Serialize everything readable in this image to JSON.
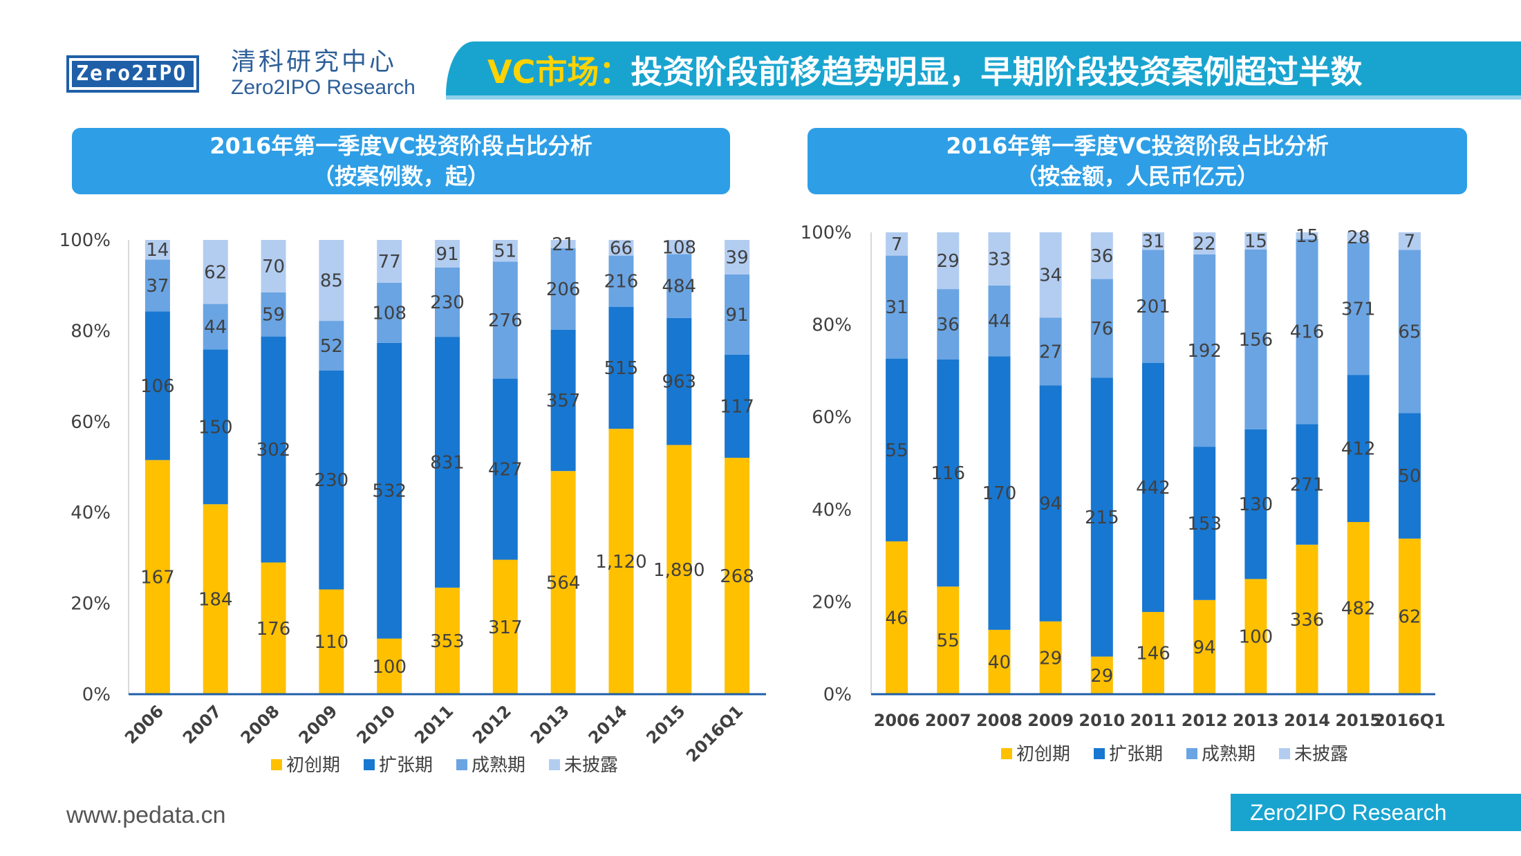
{
  "header": {
    "logo_text": "Zero2IPO",
    "org_name_cn": "清科研究中心",
    "org_name_en": "Zero2IPO Research",
    "title_highlight": "VC市场：",
    "title_rest": "投资阶段前移趋势明显，早期阶段投资案例超过半数"
  },
  "footer": {
    "url": "www.pedata.cn",
    "brand": "Zero2IPO Research"
  },
  "colors": {
    "seed": "#ffc000",
    "expansion": "#1877d0",
    "mature": "#6aa4e3",
    "undisclosed": "#b3cdf1",
    "title_bar": "#19a4d0",
    "panel_title": "#2e9fe6"
  },
  "chart_data": [
    {
      "type": "bar",
      "stacked": "percent",
      "title_line1": "2016年第一季度VC投资阶段占比分析",
      "title_line2": "（按案例数，起）",
      "categories": [
        "2006",
        "2007",
        "2008",
        "2009",
        "2010",
        "2011",
        "2012",
        "2013",
        "2014",
        "2015",
        "2016Q1"
      ],
      "yticks": [
        "0%",
        "20%",
        "40%",
        "60%",
        "80%",
        "100%"
      ],
      "ylim": [
        0,
        100
      ],
      "legend_position": "bottom",
      "series": [
        {
          "name": "初创期",
          "color_key": "seed",
          "values": [
            167,
            184,
            176,
            110,
            100,
            353,
            317,
            564,
            1120,
            1890,
            268
          ],
          "labels": [
            "167",
            "184",
            "176",
            "110",
            "100",
            "353",
            "317",
            "564",
            "1,120",
            "1,890",
            "268"
          ]
        },
        {
          "name": "扩张期",
          "color_key": "expansion",
          "values": [
            106,
            150,
            302,
            230,
            532,
            831,
            427,
            357,
            515,
            963,
            117
          ],
          "labels": [
            "106",
            "150",
            "302",
            "230",
            "532",
            "831",
            "427",
            "357",
            "515",
            "963",
            "117"
          ]
        },
        {
          "name": "成熟期",
          "color_key": "mature",
          "values": [
            37,
            44,
            59,
            52,
            108,
            230,
            276,
            206,
            216,
            484,
            91
          ],
          "labels": [
            "37",
            "44",
            "59",
            "52",
            "108",
            "230",
            "276",
            "206",
            "216",
            "484",
            "91"
          ]
        },
        {
          "name": "未披露",
          "color_key": "undisclosed",
          "values": [
            14,
            62,
            70,
            85,
            77,
            91,
            51,
            21,
            66,
            108,
            39
          ],
          "labels": [
            "14",
            "62",
            "70",
            "85",
            "77",
            "91",
            "51",
            "21",
            "66",
            "108",
            "39"
          ]
        }
      ]
    },
    {
      "type": "bar",
      "stacked": "percent",
      "title_line1": "2016年第一季度VC投资阶段占比分析",
      "title_line2": "（按金额，人民币亿元）",
      "categories": [
        "2006",
        "2007",
        "2008",
        "2009",
        "2010",
        "2011",
        "2012",
        "2013",
        "2014",
        "2015",
        "2016Q1"
      ],
      "yticks": [
        "0%",
        "20%",
        "40%",
        "60%",
        "80%",
        "100%"
      ],
      "ylim": [
        0,
        100
      ],
      "legend_position": "bottom",
      "series": [
        {
          "name": "初创期",
          "color_key": "seed",
          "values": [
            46,
            55,
            40,
            29,
            29,
            146,
            94,
            100,
            336,
            482,
            62
          ],
          "labels": [
            "46",
            "55",
            "40",
            "29",
            "29",
            "146",
            "94",
            "100",
            "336",
            "482",
            "62"
          ]
        },
        {
          "name": "扩张期",
          "color_key": "expansion",
          "values": [
            55,
            116,
            170,
            94,
            215,
            442,
            153,
            130,
            271,
            412,
            50
          ],
          "labels": [
            "55",
            "116",
            "170",
            "94",
            "215",
            "442",
            "153",
            "130",
            "271",
            "412",
            "50"
          ]
        },
        {
          "name": "成熟期",
          "color_key": "mature",
          "values": [
            31,
            36,
            44,
            27,
            76,
            201,
            192,
            156,
            416,
            371,
            65
          ],
          "labels": [
            "31",
            "36",
            "44",
            "27",
            "76",
            "201",
            "192",
            "156",
            "416",
            "371",
            "65"
          ]
        },
        {
          "name": "未披露",
          "color_key": "undisclosed",
          "values": [
            7,
            29,
            33,
            34,
            36,
            31,
            22,
            15,
            15,
            28,
            7
          ],
          "labels": [
            "7",
            "29",
            "33",
            "34",
            "36",
            "31",
            "22",
            "15",
            "15",
            "28",
            "7"
          ]
        }
      ]
    }
  ]
}
